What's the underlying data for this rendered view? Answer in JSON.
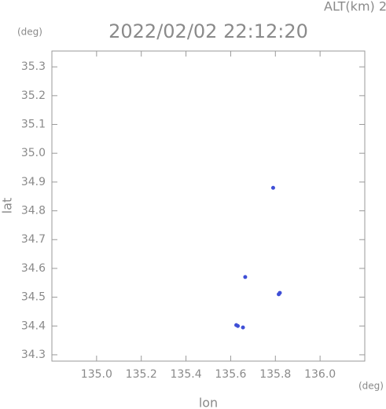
{
  "chart_data": {
    "type": "scatter",
    "title": "2022/02/02 22:12:20",
    "annotation": "ALT(km) 2.0",
    "x_label": "lon",
    "y_label": "lat",
    "x_unit": "(deg)",
    "y_unit": "(deg)",
    "color": "#3f4fd6",
    "x": [
      135.79,
      135.665,
      135.815,
      135.82,
      135.625,
      135.632,
      135.655
    ],
    "y": [
      34.88,
      34.57,
      34.51,
      34.515,
      34.403,
      34.4,
      34.395
    ],
    "xlim": [
      134.8,
      136.2
    ],
    "ylim": [
      34.278,
      35.355
    ],
    "xticks": [
      {
        "value": 135,
        "label": "135.0"
      },
      135.2,
      135.4,
      135.6,
      135.8,
      {
        "value": 136,
        "label": "136.0"
      }
    ],
    "yticks": [
      34.3,
      34.4,
      34.5,
      34.6,
      34.7,
      34.8,
      34.9,
      {
        "value": 35,
        "label": "35.0"
      },
      35.1,
      35.2,
      35.3
    ]
  }
}
